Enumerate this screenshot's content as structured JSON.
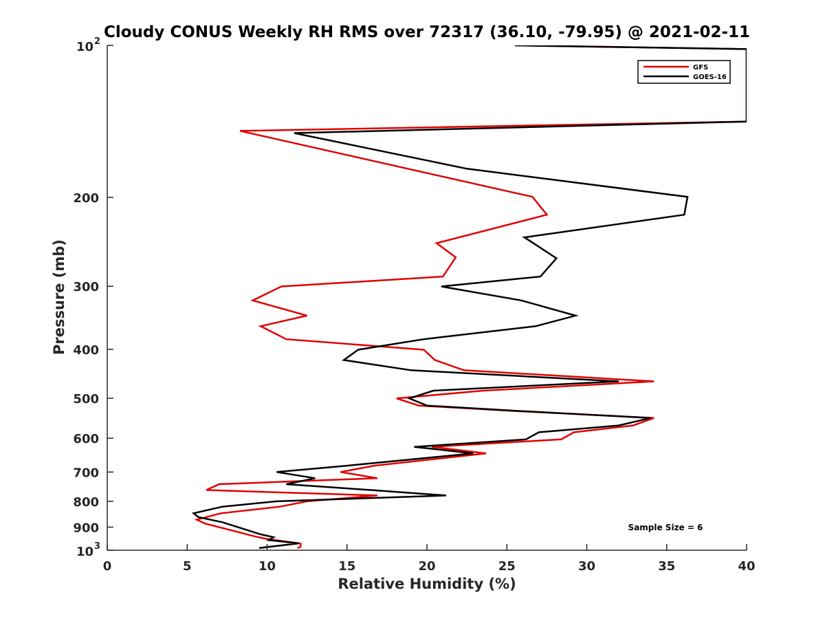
{
  "chart_data": {
    "type": "line",
    "title": "Cloudy CONUS Weekly RH RMS over 72317 (36.10, -79.95) @ 2021-02-11",
    "xlabel": "Relative Humidity (%)",
    "ylabel": "Pressure (mb)",
    "xlim": [
      0,
      40
    ],
    "ylim": [
      100,
      1000
    ],
    "y_scale": "log",
    "y_reversed": true,
    "x_ticks": [
      "0",
      "5",
      "10",
      "15",
      "20",
      "25",
      "30",
      "35",
      "40"
    ],
    "y_ticks": [
      {
        "value": 100,
        "label": "10",
        "exp": "2"
      },
      {
        "value": 200,
        "label": "200"
      },
      {
        "value": 300,
        "label": "300"
      },
      {
        "value": 400,
        "label": "400"
      },
      {
        "value": 500,
        "label": "500"
      },
      {
        "value": 600,
        "label": "600"
      },
      {
        "value": 700,
        "label": "700"
      },
      {
        "value": 800,
        "label": "800"
      },
      {
        "value": 900,
        "label": "900"
      },
      {
        "value": 1000,
        "label": "10",
        "exp": "3"
      }
    ],
    "legend_position": "top-right",
    "annotation": "Sample Size = 6",
    "series": [
      {
        "name": "GFS",
        "color": "#e00000",
        "points": [
          [
            25.5,
            100
          ],
          [
            40,
            101.7
          ],
          [
            40,
            141.5
          ],
          [
            8.3,
            147.7
          ],
          [
            26.6,
            199.5
          ],
          [
            27.5,
            216.5
          ],
          [
            20.6,
            246.5
          ],
          [
            21.8,
            263
          ],
          [
            21,
            287
          ],
          [
            10.9,
            300.3
          ],
          [
            9.1,
            320
          ],
          [
            12.5,
            343
          ],
          [
            9.6,
            360
          ],
          [
            11.2,
            382
          ],
          [
            19.8,
            400.7
          ],
          [
            20.5,
            420
          ],
          [
            22.3,
            440
          ],
          [
            34.2,
            463
          ],
          [
            23.5,
            483
          ],
          [
            18.1,
            500.4
          ],
          [
            19.5,
            517
          ],
          [
            25.5,
            530
          ],
          [
            34.2,
            547
          ],
          [
            32.9,
            566
          ],
          [
            29.2,
            584
          ],
          [
            28.4,
            603
          ],
          [
            20.3,
            624
          ],
          [
            23.7,
            643
          ],
          [
            16.7,
            680
          ],
          [
            14.6,
            700
          ],
          [
            16.9,
            720
          ],
          [
            7.0,
            740
          ],
          [
            6.2,
            760
          ],
          [
            16.9,
            779
          ],
          [
            12.5,
            800
          ],
          [
            10.8,
            820
          ],
          [
            7.1,
            845
          ],
          [
            5.6,
            870
          ],
          [
            6.1,
            885
          ],
          [
            9.3,
            940
          ],
          [
            10.0,
            950
          ],
          [
            12.1,
            970
          ],
          [
            12.1,
            984
          ],
          [
            11.9,
            990
          ]
        ]
      },
      {
        "name": "GOES-16",
        "color": "#000000",
        "points": [
          [
            25.5,
            100
          ],
          [
            40,
            101.7
          ],
          [
            40,
            141.5
          ],
          [
            11.7,
            149.2
          ],
          [
            22.5,
            175.5
          ],
          [
            36.3,
            199.5
          ],
          [
            36.1,
            216.5
          ],
          [
            26.1,
            240
          ],
          [
            28.1,
            264
          ],
          [
            27.1,
            287
          ],
          [
            20.9,
            300.3
          ],
          [
            25.9,
            320
          ],
          [
            29.3,
            343
          ],
          [
            26.8,
            360
          ],
          [
            19.8,
            382
          ],
          [
            15.7,
            400.7
          ],
          [
            14.8,
            420
          ],
          [
            19.0,
            440
          ],
          [
            32.0,
            463
          ],
          [
            20.4,
            483
          ],
          [
            18.9,
            500.4
          ],
          [
            20.0,
            517
          ],
          [
            25.8,
            530
          ],
          [
            34.0,
            547
          ],
          [
            32.0,
            566
          ],
          [
            27.0,
            584
          ],
          [
            26.2,
            603
          ],
          [
            19.2,
            624
          ],
          [
            22.9,
            643
          ],
          [
            15.0,
            680
          ],
          [
            10.6,
            700
          ],
          [
            13.0,
            720
          ],
          [
            11.2,
            740
          ],
          [
            16.5,
            760
          ],
          [
            21.2,
            779
          ],
          [
            10.6,
            800
          ],
          [
            7.2,
            820
          ],
          [
            5.4,
            845
          ],
          [
            5.7,
            860
          ],
          [
            7.2,
            880
          ],
          [
            9.6,
            930
          ],
          [
            10.4,
            942
          ],
          [
            10.1,
            955
          ],
          [
            12.0,
            969
          ],
          [
            9.5,
            990
          ]
        ]
      }
    ]
  }
}
